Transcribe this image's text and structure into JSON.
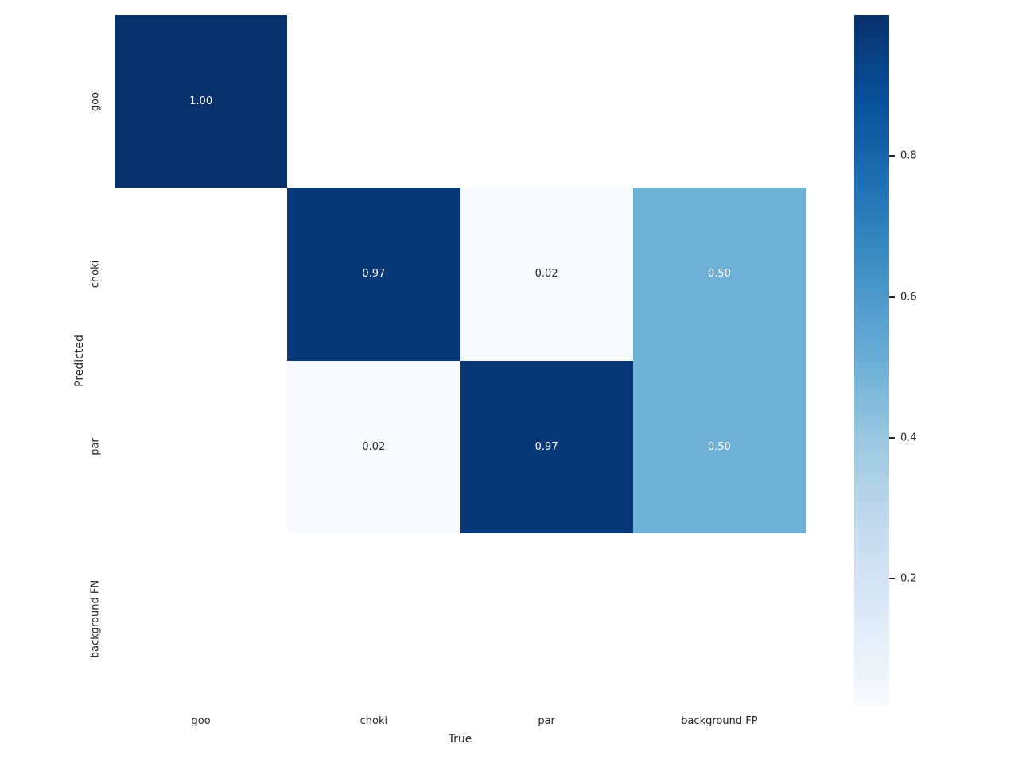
{
  "chart_data": {
    "type": "heatmap",
    "title": "",
    "xlabel": "True",
    "ylabel": "Predicted",
    "x_categories": [
      "goo",
      "choki",
      "par",
      "background FP"
    ],
    "y_categories": [
      "goo",
      "choki",
      "par",
      "background FN"
    ],
    "values": [
      [
        1.0,
        null,
        null,
        null
      ],
      [
        null,
        0.97,
        0.02,
        0.5
      ],
      [
        null,
        0.02,
        0.97,
        0.5
      ],
      [
        null,
        null,
        null,
        null
      ]
    ],
    "annotations": [
      [
        "1.00",
        "",
        "",
        ""
      ],
      [
        "",
        "0.97",
        "0.02",
        "0.50"
      ],
      [
        "",
        "0.02",
        "0.97",
        "0.50"
      ],
      [
        "",
        "",
        "",
        ""
      ]
    ],
    "vmin": 0.02,
    "vmax": 1.0,
    "colormap": "Blues",
    "colormap_anchors": [
      "#f7fbff",
      "#deebf7",
      "#c6dbef",
      "#9ecae1",
      "#6baed6",
      "#4292c6",
      "#2171b5",
      "#08519c",
      "#08306b"
    ],
    "nan_color": "#ffffff",
    "annot_color_light": "#ffffff",
    "annot_color_dark": "#262626",
    "tick_color": "#262626",
    "colorbar_ticks": [
      0.2,
      0.4,
      0.6,
      0.8
    ],
    "colorbar_tick_labels": [
      "0.2",
      "0.4",
      "0.6",
      "0.8"
    ],
    "legend_position": "right-colorbar",
    "grid": false,
    "background": "#ffffff"
  }
}
